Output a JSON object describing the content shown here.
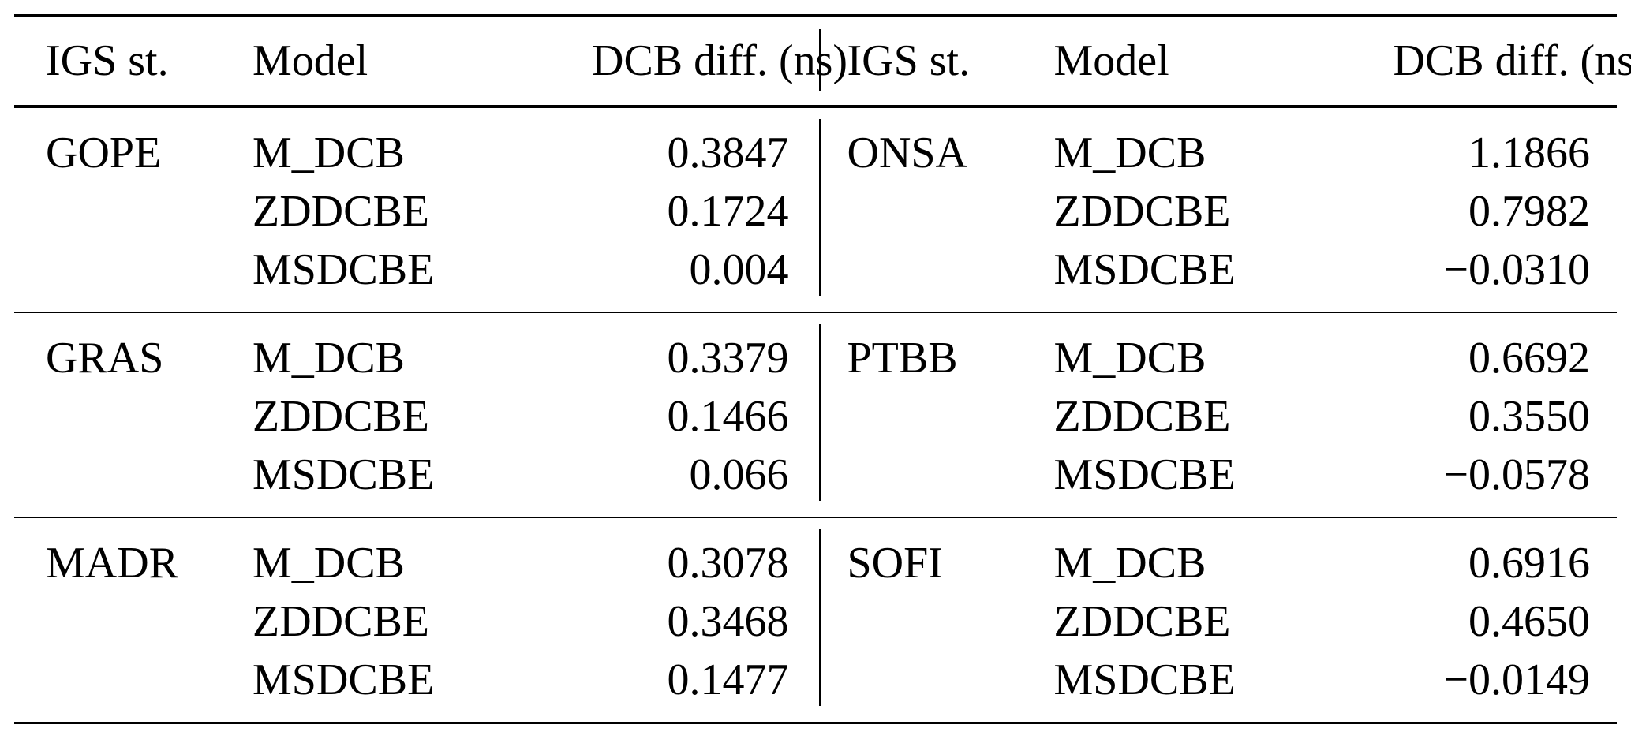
{
  "page": {
    "background_color": "#ffffff",
    "text_color": "#000000",
    "rule_color": "#000000"
  },
  "table": {
    "column_headers": {
      "station": "IGS st.",
      "model": "Model",
      "value": "DCB diff. (ns)"
    },
    "groups": [
      {
        "left": {
          "station": "GOPE",
          "rows": [
            {
              "model": "M_DCB",
              "value": "0.3847"
            },
            {
              "model": "ZDDCBE",
              "value": "0.1724"
            },
            {
              "model": "MSDCBE",
              "value": "0.004"
            }
          ]
        },
        "right": {
          "station": "ONSA",
          "rows": [
            {
              "model": "M_DCB",
              "value": "1.1866"
            },
            {
              "model": "ZDDCBE",
              "value": "0.7982"
            },
            {
              "model": "MSDCBE",
              "value": "−0.0310"
            }
          ]
        }
      },
      {
        "left": {
          "station": "GRAS",
          "rows": [
            {
              "model": "M_DCB",
              "value": "0.3379"
            },
            {
              "model": "ZDDCBE",
              "value": "0.1466"
            },
            {
              "model": "MSDCBE",
              "value": "0.066"
            }
          ]
        },
        "right": {
          "station": "PTBB",
          "rows": [
            {
              "model": "M_DCB",
              "value": "0.6692"
            },
            {
              "model": "ZDDCBE",
              "value": "0.3550"
            },
            {
              "model": "MSDCBE",
              "value": "−0.0578"
            }
          ]
        }
      },
      {
        "left": {
          "station": "MADR",
          "rows": [
            {
              "model": "M_DCB",
              "value": "0.3078"
            },
            {
              "model": "ZDDCBE",
              "value": "0.3468"
            },
            {
              "model": "MSDCBE",
              "value": "0.1477"
            }
          ]
        },
        "right": {
          "station": "SOFI",
          "rows": [
            {
              "model": "M_DCB",
              "value": "0.6916"
            },
            {
              "model": "ZDDCBE",
              "value": "0.4650"
            },
            {
              "model": "MSDCBE",
              "value": "−0.0149"
            }
          ]
        }
      }
    ]
  }
}
